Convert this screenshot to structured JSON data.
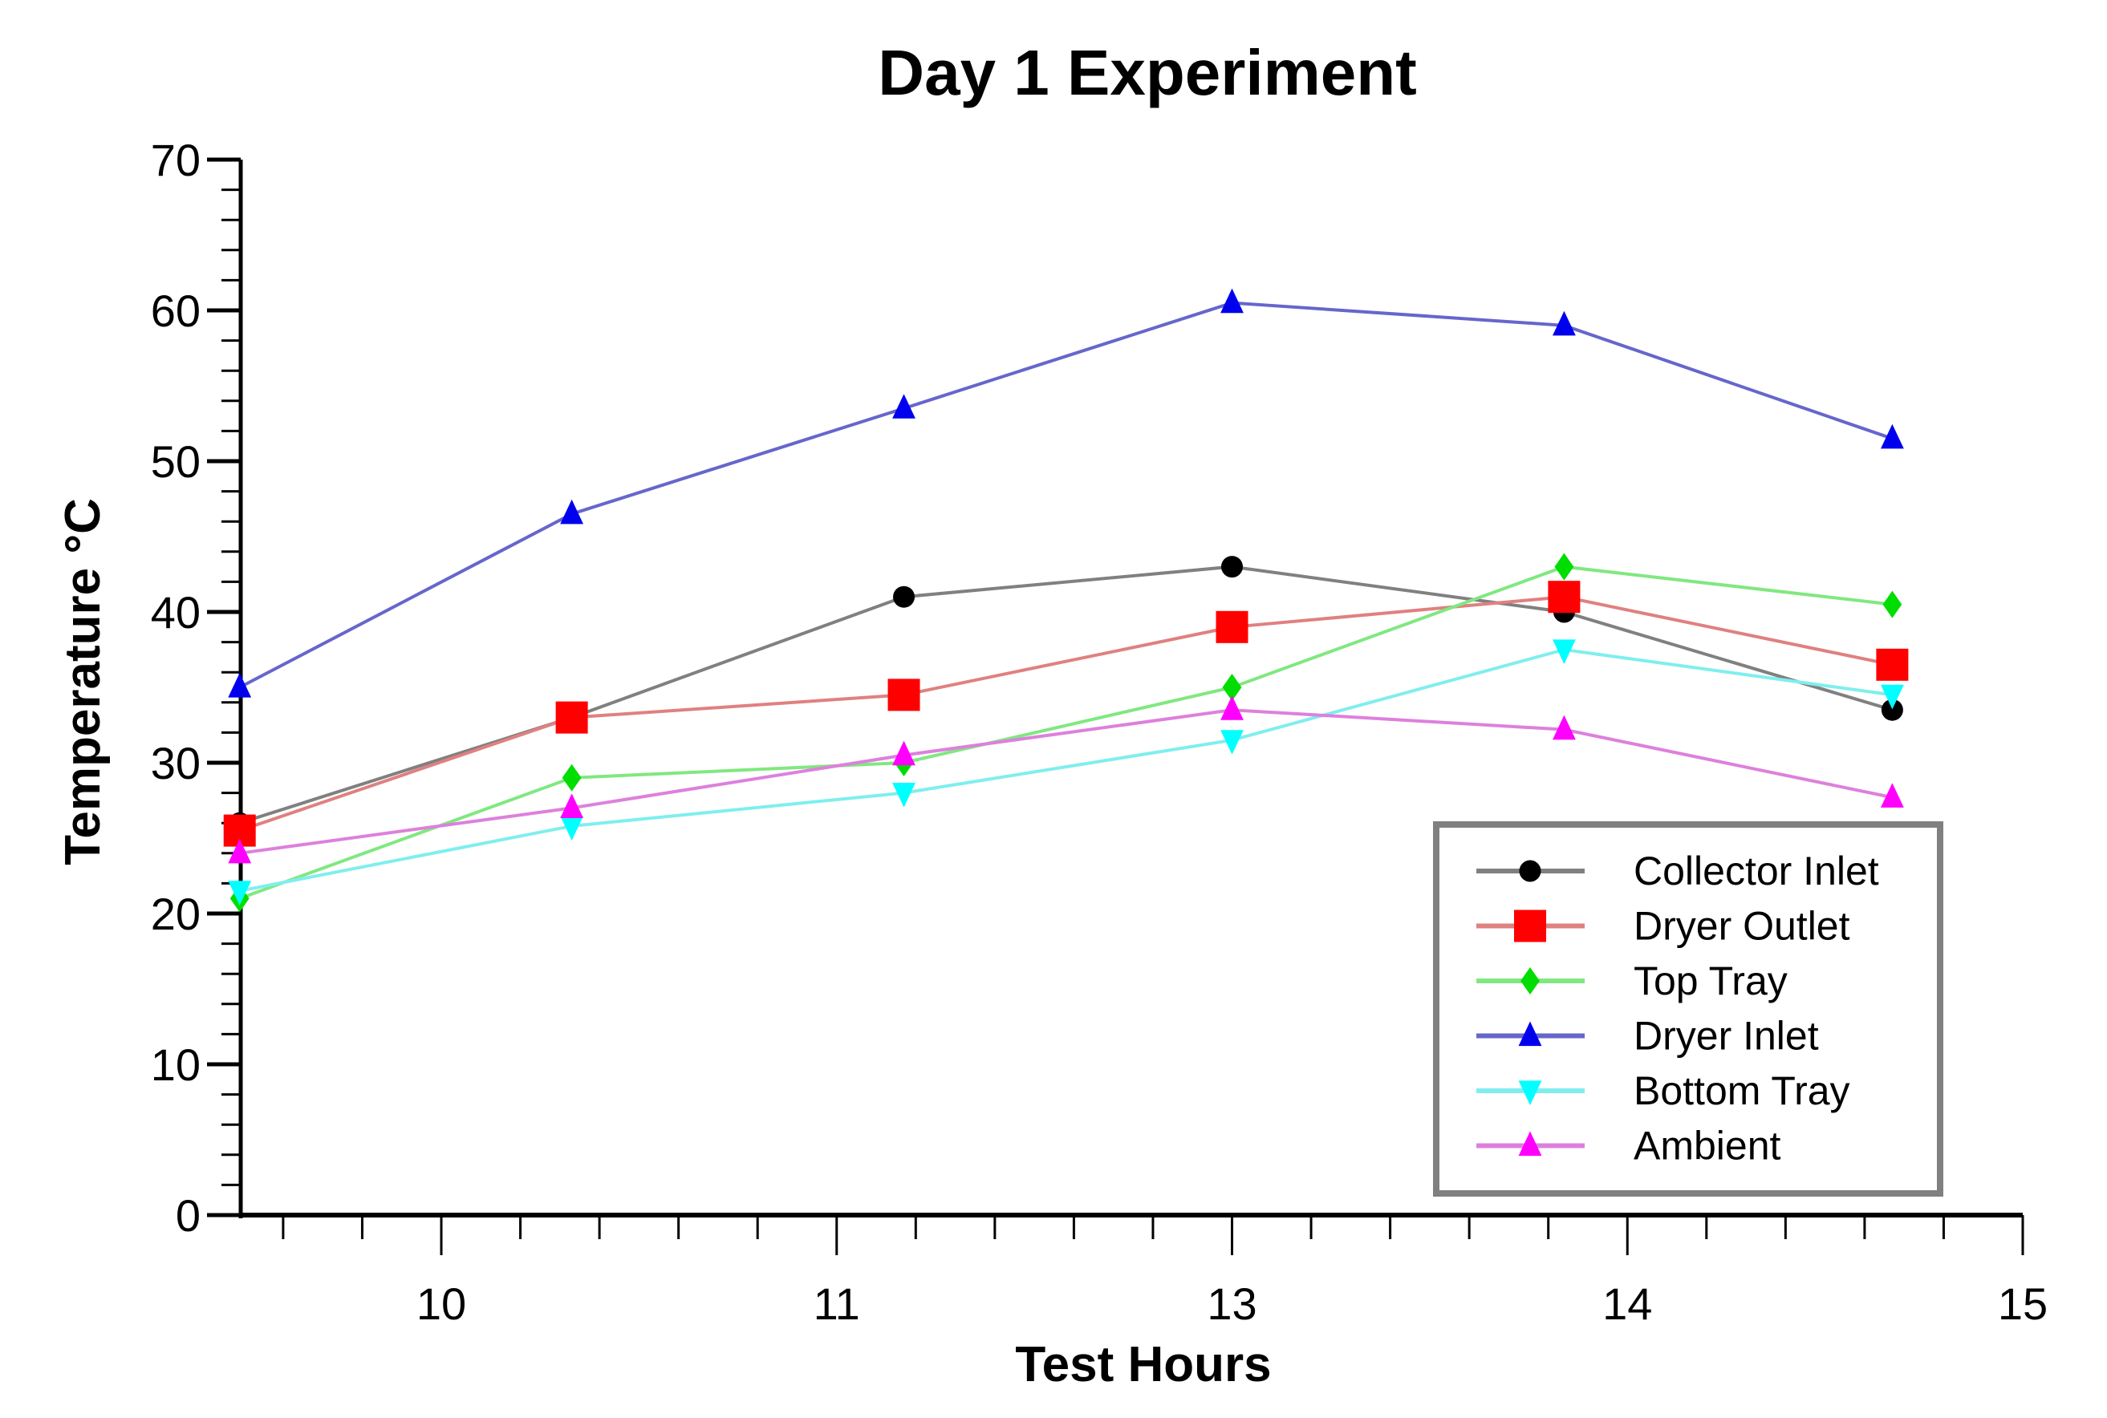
{
  "chart_data": {
    "type": "line",
    "title": "Day 1 Experiment",
    "xlabel": "Test Hours",
    "ylabel": "Temperature °C",
    "ylim": [
      0,
      70
    ],
    "yticks": [
      "0",
      "10",
      "20",
      "30",
      "40",
      "50",
      "60",
      "70"
    ],
    "xticks": [
      "10",
      "11",
      "13",
      "14",
      "15"
    ],
    "x_note": "x values given as position along axis in units of tick index (tick 10 = 0, tick 15 = 4)",
    "xlim_index": [
      -0.51,
      4.0
    ],
    "x": [
      -0.51,
      0.33,
      1.17,
      2.0,
      2.84,
      3.67
    ],
    "legend_position": "bottom-right",
    "grid": false,
    "series": [
      {
        "name": "Collector Inlet",
        "color": "#000000",
        "line": "#808080",
        "marker": "circle",
        "values": [
          26,
          33,
          41,
          43,
          40,
          33.5
        ]
      },
      {
        "name": "Dryer Outlet",
        "color": "#ff0000",
        "line": "#e08080",
        "marker": "square",
        "values": [
          25.5,
          33,
          34.5,
          39,
          41,
          36.5
        ]
      },
      {
        "name": "Top Tray",
        "color": "#00dd00",
        "line": "#80e880",
        "marker": "diamond",
        "values": [
          21,
          29,
          30,
          35,
          43,
          40.5
        ]
      },
      {
        "name": "Dryer Inlet",
        "color": "#0000ee",
        "line": "#6666cc",
        "marker": "triangle-up",
        "values": [
          35,
          46.5,
          53.5,
          60.5,
          59,
          51.5
        ]
      },
      {
        "name": "Bottom Tray",
        "color": "#00ffff",
        "line": "#80eeee",
        "marker": "triangle-down",
        "values": [
          21.5,
          25.8,
          28,
          31.5,
          37.5,
          34.5
        ]
      },
      {
        "name": "Ambient",
        "color": "#ff00ff",
        "line": "#dd80dd",
        "marker": "triangle-up",
        "values": [
          24,
          27,
          30.5,
          33.5,
          32.2,
          27.7
        ]
      }
    ]
  }
}
